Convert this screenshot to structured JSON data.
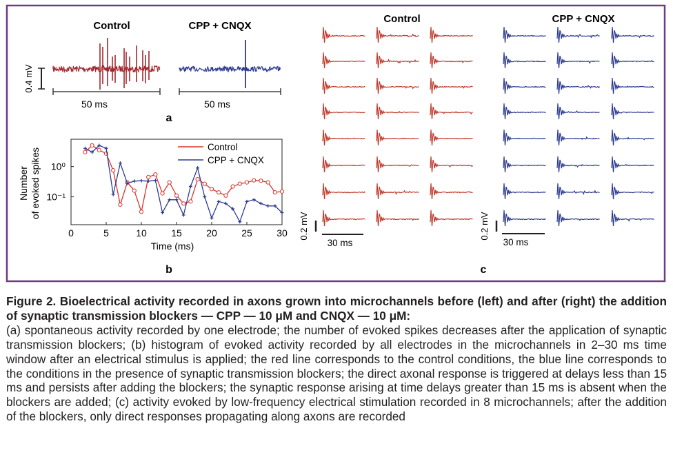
{
  "figure": {
    "frame_color": "#6b3b8e",
    "colors": {
      "control": "#c0392b",
      "blockers": "#2c3a8f",
      "panel_a_control": "#a3262c"
    },
    "panel_a": {
      "label": "a",
      "control_title": "Control",
      "blocker_title": "CPP + CNQX",
      "scale_v": "0.4 mV",
      "scale_t_control": "50 ms",
      "scale_t_blocker": "50 ms"
    },
    "panel_b": {
      "label": "b"
    },
    "panel_c": {
      "label": "c",
      "control_title": "Control",
      "blocker_title": "CPP + CNQX",
      "scale_v_left": "0.2 mV",
      "scale_v_right": "0.2 mV",
      "scale_t_left": "30 ms",
      "scale_t_right": "30 ms"
    }
  },
  "chart_data": {
    "type": "line",
    "xlabel": "Time (ms)",
    "ylabel": "Number of evoked spikes",
    "ylabel_lines": [
      "Number",
      "of evoked spikes"
    ],
    "xlim": [
      0,
      30
    ],
    "ylim": [
      0.012,
      8
    ],
    "yscale": "log",
    "xticks": [
      0,
      5,
      10,
      15,
      20,
      25,
      30
    ],
    "ytick_labels": [
      "10⁰",
      "10⁻¹"
    ],
    "yticks": [
      1,
      0.1
    ],
    "legend_position": "top-right",
    "series": [
      {
        "name": "Control",
        "color": "#d9332b",
        "x": [
          2,
          3,
          4,
          5,
          6,
          7,
          8,
          9,
          10,
          11,
          12,
          13,
          14,
          15,
          16,
          17,
          18,
          19,
          20,
          21,
          22,
          23,
          24,
          25,
          26,
          27,
          28,
          29,
          30
        ],
        "values": [
          3.0,
          5.0,
          3.5,
          2.7,
          0.75,
          0.055,
          0.3,
          0.16,
          0.032,
          0.45,
          0.55,
          0.13,
          0.3,
          0.11,
          0.06,
          0.07,
          0.38,
          0.27,
          0.18,
          0.14,
          0.11,
          0.22,
          0.27,
          0.3,
          0.35,
          0.34,
          0.3,
          0.14,
          0.15
        ]
      },
      {
        "name": "CPP + CNQX",
        "color": "#2c3a8f",
        "x": [
          2,
          3,
          4,
          5,
          6,
          7,
          8,
          9,
          10,
          11,
          12,
          13,
          14,
          15,
          16,
          17,
          18,
          19,
          20,
          21,
          22,
          23,
          24,
          25,
          26,
          27,
          28,
          29,
          30
        ],
        "values": [
          4.0,
          3.0,
          5.0,
          4.0,
          0.12,
          1.3,
          0.28,
          0.33,
          0.34,
          0.33,
          0.35,
          0.03,
          0.08,
          0.08,
          0.025,
          0.22,
          0.9,
          0.1,
          0.02,
          0.07,
          0.06,
          0.04,
          0.015,
          0.07,
          0.08,
          0.06,
          0.05,
          0.05,
          0.03
        ]
      }
    ]
  },
  "caption": {
    "title": "Figure 2. Bioelectrical activity recorded in axons grown into microchannels before (left) and after (right) the addition of synaptic transmission blockers — CPP — 10 μM and CNQX — 10 μM:",
    "body": "(a) spontaneous activity recorded by one electrode; the number of evoked spikes decreases after the application of synaptic transmission blockers; (b) histogram of evoked activity recorded by all electrodes in the microchannels in 2–30 ms time window after an electrical stimulus is applied; the red line corresponds to the control conditions, the blue line corresponds to the conditions in the presence of synaptic transmission blockers; the direct axonal response is triggered at delays less than 15 ms and persists after adding the blockers; the synaptic response arising at time delays greater than 15 ms is absent when the blockers are added; (c) activity evoked by low-frequency electrical stimulation recorded in 8 microchannels; after the addition of the blockers, only direct responses propagating along axons are recorded"
  }
}
